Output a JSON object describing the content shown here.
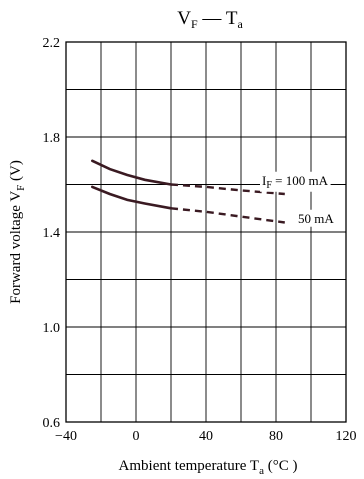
{
  "chart_data": {
    "type": "line",
    "title": {
      "main": "V",
      "main_sub": "F",
      "sep": " — ",
      "second": "T",
      "second_sub": "a"
    },
    "xlabel": {
      "main": "Ambient temperature  T",
      "sub": "a",
      "unit": " (°C )"
    },
    "ylabel": {
      "main": "Forward voltage  V",
      "sub": "F",
      "unit": "  (V)"
    },
    "xlim": [
      -40,
      120
    ],
    "ylim": [
      0.6,
      2.2
    ],
    "x_ticks": [
      -40,
      0,
      40,
      80,
      120
    ],
    "x_tick_labels": [
      "−40",
      "0",
      "40",
      "80",
      "120"
    ],
    "y_ticks": [
      0.6,
      1.0,
      1.4,
      1.8,
      2.2
    ],
    "y_tick_labels": [
      "0.6",
      "1.0",
      "1.4",
      "1.8",
      "2.2"
    ],
    "x_grid_step": 20,
    "y_grid_step": 0.2,
    "grid": true,
    "series": [
      {
        "label_main": "I",
        "label_sub": "F",
        "label_rest": " = 100 mA",
        "color": "#3a1a22",
        "solid": [
          {
            "x": -25,
            "y": 1.7
          },
          {
            "x": -15,
            "y": 1.665
          },
          {
            "x": -5,
            "y": 1.64
          },
          {
            "x": 5,
            "y": 1.62
          },
          {
            "x": 20,
            "y": 1.6
          }
        ],
        "dashed": [
          {
            "x": 20,
            "y": 1.6
          },
          {
            "x": 40,
            "y": 1.59
          },
          {
            "x": 60,
            "y": 1.575
          },
          {
            "x": 85,
            "y": 1.56
          }
        ]
      },
      {
        "label_rest": "50 mA",
        "color": "#3a1a22",
        "solid": [
          {
            "x": -25,
            "y": 1.59
          },
          {
            "x": -15,
            "y": 1.56
          },
          {
            "x": -5,
            "y": 1.535
          },
          {
            "x": 5,
            "y": 1.52
          },
          {
            "x": 20,
            "y": 1.5
          }
        ],
        "dashed": [
          {
            "x": 20,
            "y": 1.5
          },
          {
            "x": 40,
            "y": 1.485
          },
          {
            "x": 60,
            "y": 1.465
          },
          {
            "x": 85,
            "y": 1.44
          }
        ]
      }
    ]
  }
}
